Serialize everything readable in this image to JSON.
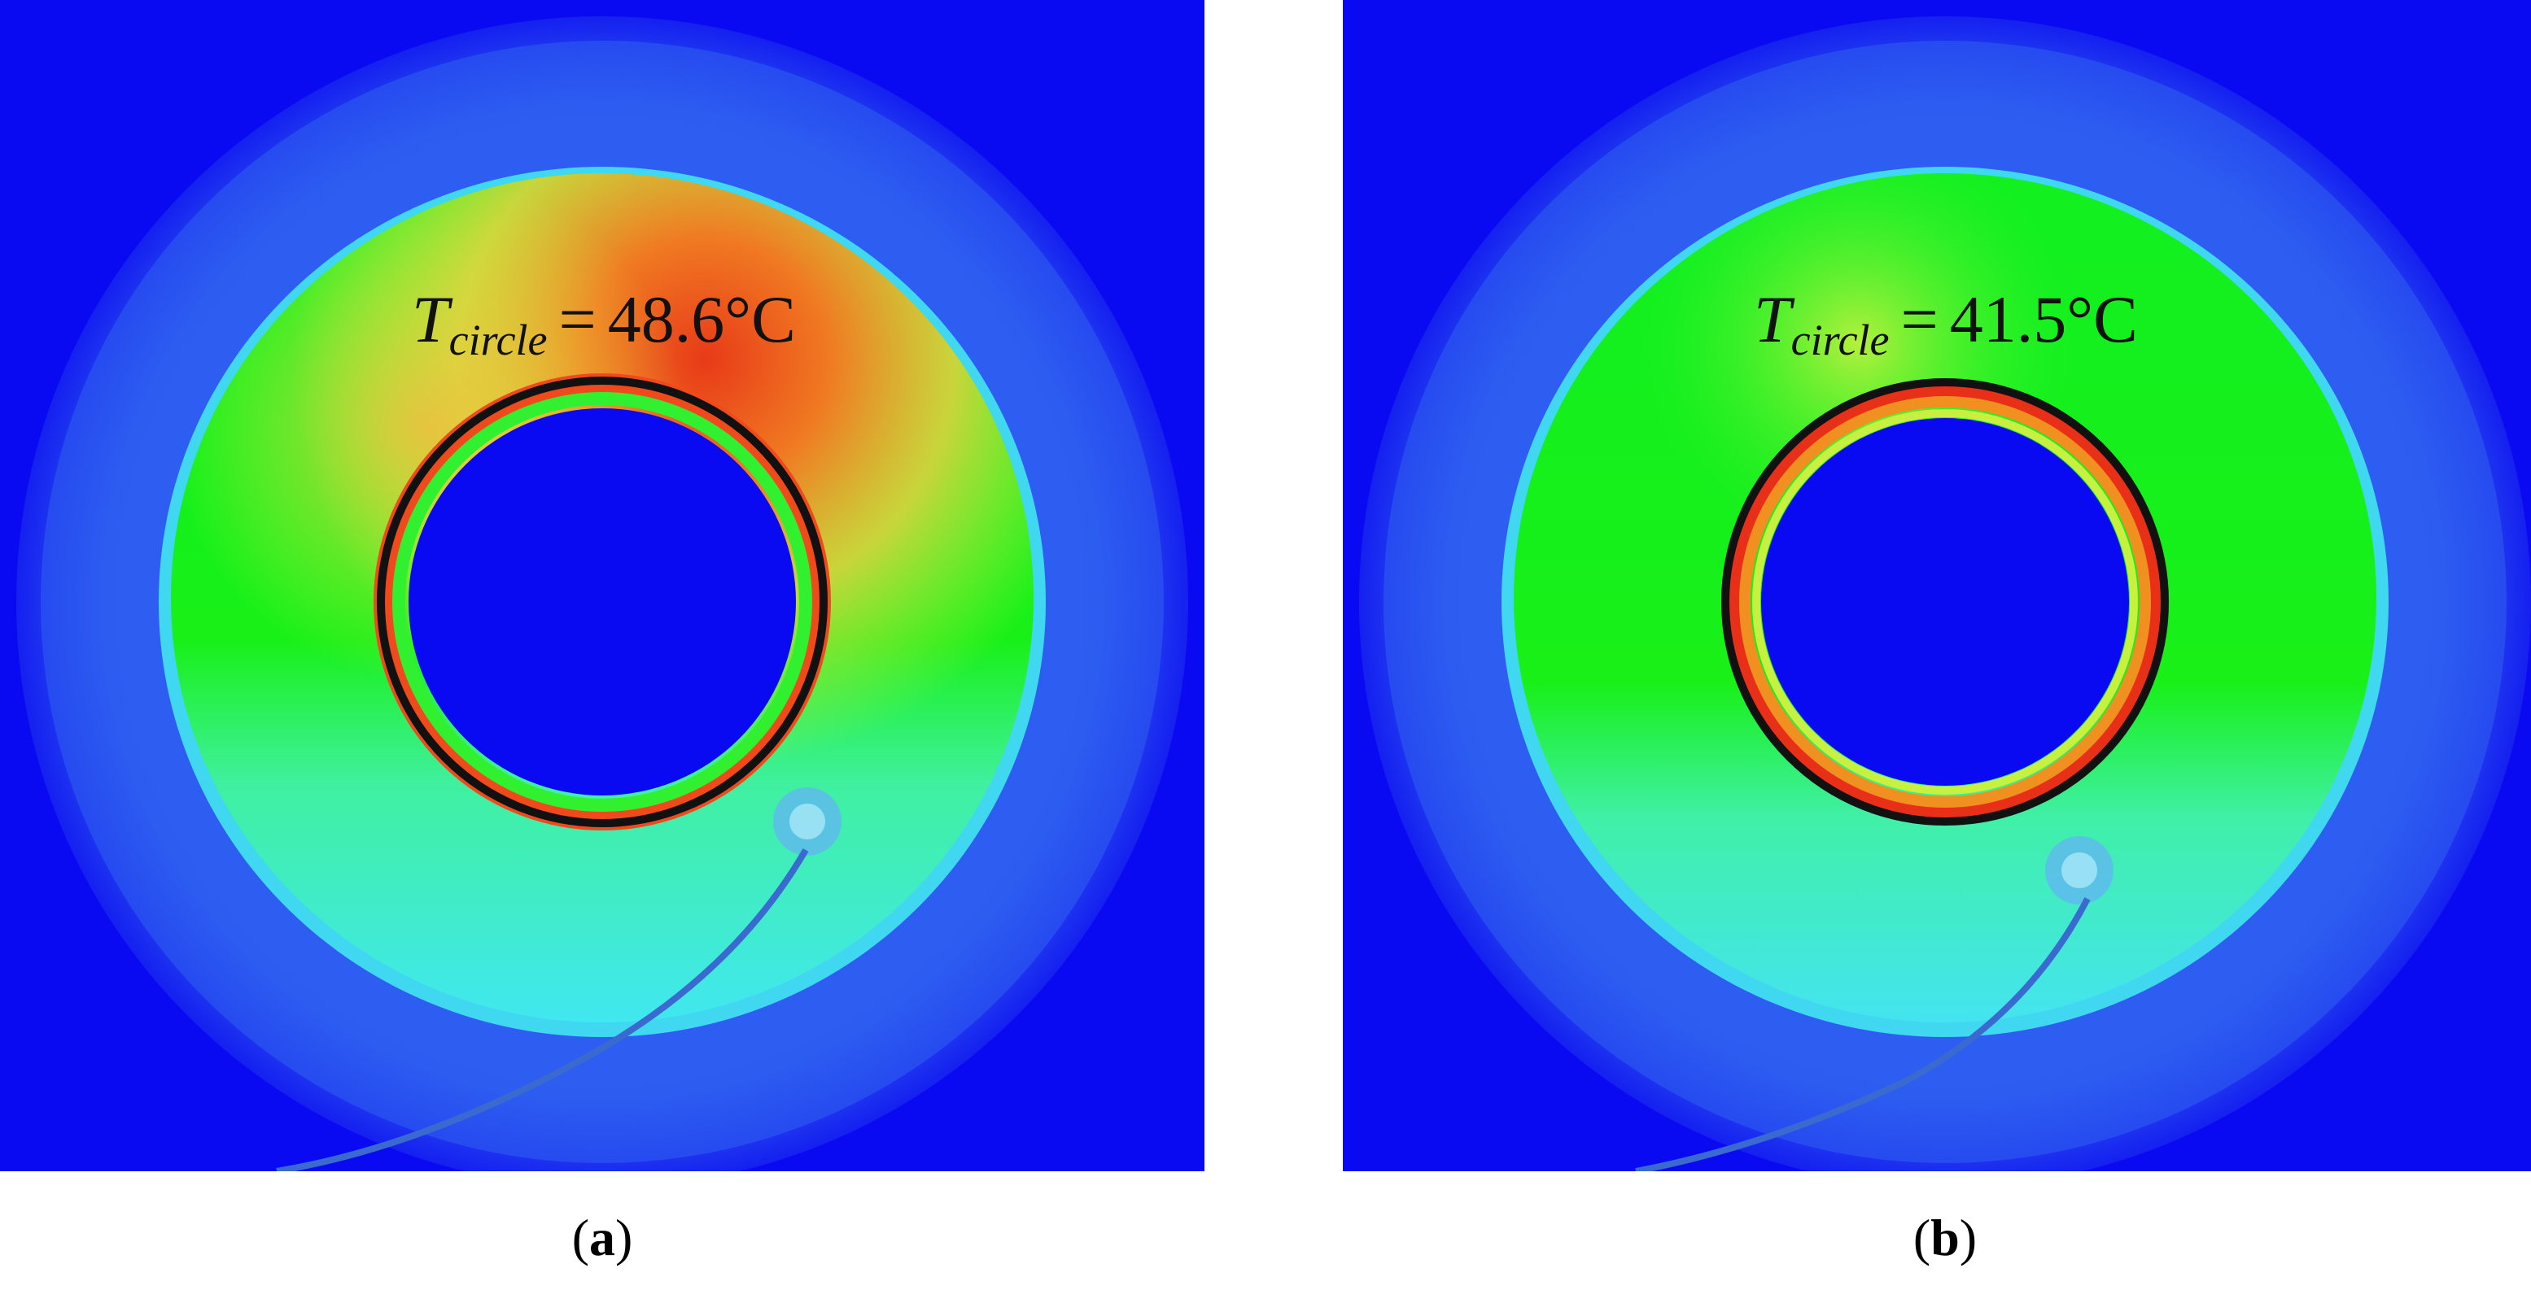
{
  "panels": [
    {
      "id": "a",
      "label_symbol": "T",
      "label_subscript": "circle",
      "label_equals": "=",
      "label_value": "48.6°C",
      "caption_open": "(",
      "caption_letter": "a",
      "caption_close": ")"
    },
    {
      "id": "b",
      "label_symbol": "T",
      "label_subscript": "circle",
      "label_equals": "=",
      "label_value": "41.5°C",
      "caption_open": "(",
      "caption_letter": "b",
      "caption_close": ")"
    }
  ],
  "colors": {
    "background_blue": "#0a0af0",
    "rim_blue": "#3a6ef0",
    "cyan": "#37f0e6",
    "green": "#14f014",
    "yellow": "#e0f040",
    "orange": "#f08020",
    "red": "#e83018",
    "ring_outline": "#111111"
  }
}
